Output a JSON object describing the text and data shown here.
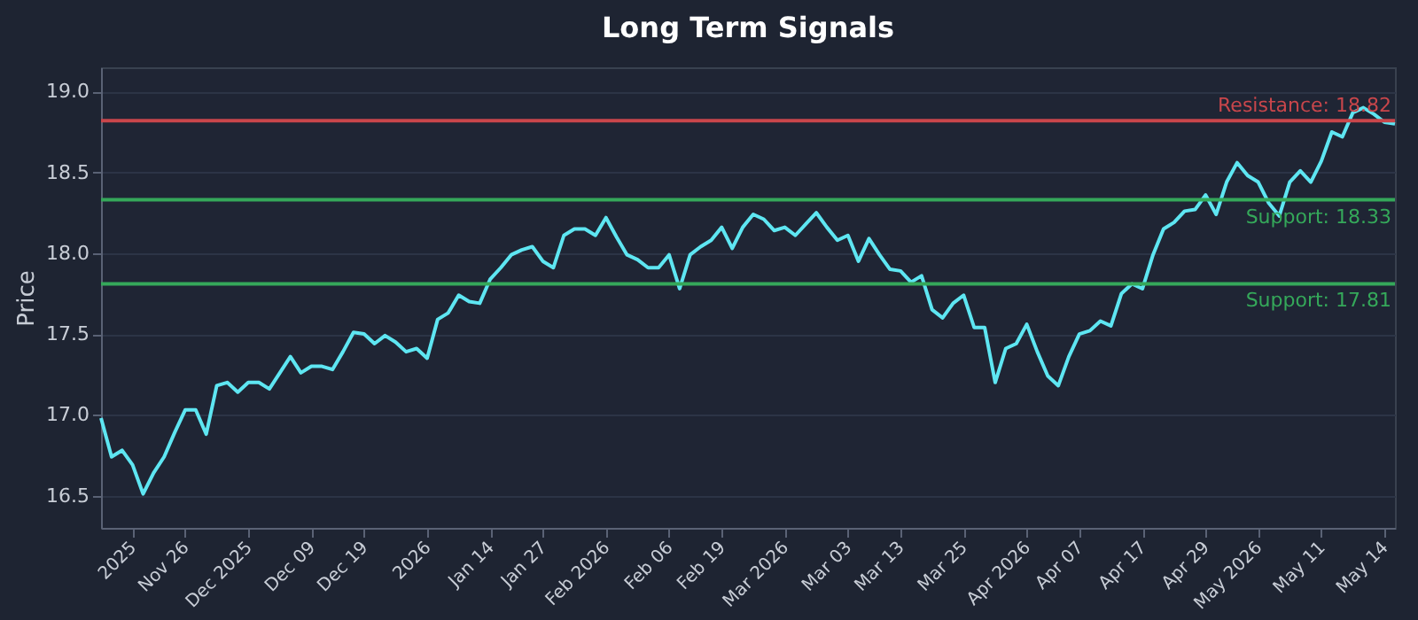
{
  "chart_data": {
    "type": "line",
    "title": "Long Term Signals",
    "ylabel": "Price",
    "categories": [
      null,
      null,
      null,
      "2025",
      null,
      null,
      null,
      null,
      "Nov 26",
      null,
      null,
      null,
      null,
      null,
      "Dec 2025",
      null,
      null,
      null,
      null,
      null,
      "Dec 09",
      null,
      null,
      null,
      null,
      "Dec 19",
      null,
      null,
      null,
      null,
      null,
      "2026",
      null,
      null,
      null,
      null,
      null,
      "Jan 14",
      null,
      null,
      null,
      null,
      "Jan 27",
      null,
      null,
      null,
      null,
      null,
      "Feb 2026",
      null,
      null,
      null,
      null,
      null,
      "Feb 06",
      null,
      null,
      null,
      null,
      "Feb 19",
      null,
      null,
      null,
      null,
      null,
      "Mar 2026",
      null,
      null,
      null,
      null,
      null,
      "Mar 03",
      null,
      null,
      null,
      null,
      "Mar 13",
      null,
      null,
      null,
      null,
      null,
      "Mar 25",
      null,
      null,
      null,
      null,
      null,
      "Apr 2026",
      null,
      null,
      null,
      null,
      "Apr 07",
      null,
      null,
      null,
      null,
      null,
      "Apr 17",
      null,
      null,
      null,
      null,
      null,
      "Apr 29",
      null,
      null,
      null,
      null,
      "May 2026",
      null,
      null,
      null,
      null,
      null,
      "May 11",
      null,
      null,
      null,
      null,
      null,
      "May 14",
      null
    ],
    "series": [
      {
        "color": "#5ee6f2",
        "values": [
          16.98,
          16.74,
          16.78,
          16.69,
          16.51,
          16.64,
          16.74,
          16.89,
          17.03,
          17.03,
          16.88,
          17.18,
          17.2,
          17.14,
          17.2,
          17.2,
          17.16,
          17.26,
          17.36,
          17.26,
          17.3,
          17.3,
          17.28,
          17.39,
          17.51,
          17.5,
          17.44,
          17.49,
          17.45,
          17.39,
          17.41,
          17.35,
          17.59,
          17.63,
          17.74,
          17.7,
          17.69,
          17.84,
          17.91,
          17.99,
          18.02,
          18.04,
          17.95,
          17.91,
          18.11,
          18.15,
          18.15,
          18.11,
          18.22,
          18.1,
          17.99,
          17.96,
          17.91,
          17.91,
          17.99,
          17.78,
          17.99,
          18.04,
          18.08,
          18.16,
          18.03,
          18.16,
          18.24,
          18.21,
          18.14,
          18.16,
          18.11,
          18.18,
          18.25,
          18.16,
          18.08,
          18.11,
          17.95,
          18.09,
          17.99,
          17.9,
          17.89,
          17.82,
          17.86,
          17.65,
          17.6,
          17.69,
          17.74,
          17.54,
          17.54,
          17.2,
          17.41,
          17.44,
          17.56,
          17.39,
          17.24,
          17.18,
          17.36,
          17.5,
          17.52,
          17.58,
          17.55,
          17.75,
          17.81,
          17.78,
          17.99,
          18.15,
          18.19,
          18.26,
          18.27,
          18.36,
          18.24,
          18.44,
          18.56,
          18.48,
          18.44,
          18.31,
          18.23,
          18.44,
          18.51,
          18.44,
          18.57,
          18.75,
          18.72,
          18.87,
          18.9,
          18.86,
          18.81,
          18.8
        ]
      }
    ],
    "ylim": [
      16.3,
      19.15
    ],
    "yticks": [
      16.5,
      {
        "value": 17,
        "label": "17.0"
      },
      17.5,
      {
        "value": 18,
        "label": "18.0"
      },
      18.5,
      {
        "value": 19,
        "label": "19.0"
      }
    ],
    "grid": "y",
    "ref_lines": [
      {
        "axis": "y",
        "value": 18.82,
        "label": "Resistance: 18.82",
        "color": "#c9464b"
      },
      {
        "axis": "y",
        "value": 18.33,
        "label": "Support: 18.33",
        "color": "#35a85a"
      },
      {
        "axis": "y",
        "value": 17.81,
        "label": "Support: 17.81",
        "color": "#35a85a"
      }
    ]
  }
}
